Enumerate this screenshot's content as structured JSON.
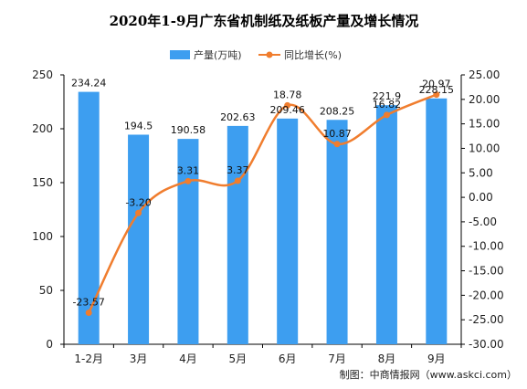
{
  "chart_data": {
    "type": "bar",
    "title": "2020年1-9月广东省机制纸及纸板产量及增长情况",
    "categories": [
      "1-2月",
      "3月",
      "4月",
      "5月",
      "6月",
      "7月",
      "8月",
      "9月"
    ],
    "series": [
      {
        "name": "产量(万吨)",
        "type": "bar",
        "axis": "left",
        "color": "#3d9ef0",
        "values": [
          234.24,
          194.5,
          190.58,
          202.63,
          209.46,
          208.25,
          221.9,
          228.15
        ],
        "labels": [
          "234.24",
          "194.5",
          "190.58",
          "202.63",
          "209.46",
          "208.25",
          "221.9",
          "228.15"
        ]
      },
      {
        "name": "同比增长(%)",
        "type": "line",
        "axis": "right",
        "color": "#f07d2e",
        "values": [
          -23.57,
          -3.2,
          3.31,
          3.37,
          18.78,
          10.87,
          16.82,
          20.97
        ],
        "labels": [
          "-23.57",
          "-3.20",
          "3.31",
          "3.37",
          "18.78",
          "10.87",
          "16.82",
          "20.97"
        ]
      }
    ],
    "ylim_left": [
      0,
      250
    ],
    "yticks_left": [
      "0",
      "50",
      "100",
      "150",
      "200",
      "250"
    ],
    "ylim_right": [
      -30,
      25
    ],
    "yticks_right": [
      "-30.00",
      "-25.00",
      "-20.00",
      "-15.00",
      "-10.00",
      "-5.00",
      "0.00",
      "5.00",
      "10.00",
      "15.00",
      "20.00",
      "25.00"
    ],
    "legend_position": "top-center",
    "grid": false
  },
  "source": "制图：中商情报网（www.askci.com）"
}
